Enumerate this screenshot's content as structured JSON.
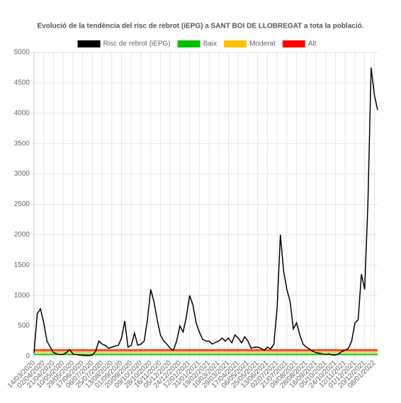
{
  "chart_data": {
    "type": "line",
    "title": "Evolució de la tendència del risc de rebrot (iEPG) a SANT BOI DE LLOBREGAT a tota la població.",
    "categories": [
      "14/03/2020",
      null,
      null,
      "02/04/2020",
      null,
      null,
      "21/04/2020",
      null,
      null,
      "10/05/2020",
      null,
      null,
      "29/05/2020",
      null,
      null,
      "17/06/2020",
      null,
      null,
      "06/07/2020",
      null,
      null,
      "25/07/2020",
      null,
      null,
      "13/08/2020",
      null,
      null,
      "01/09/2020",
      null,
      null,
      "20/09/2020",
      null,
      null,
      "09/10/2020",
      null,
      null,
      "28/10/2020",
      null,
      null,
      "16/11/2020",
      null,
      null,
      "05/12/2020",
      null,
      null,
      "24/12/2020",
      null,
      null,
      "12/01/2021",
      null,
      null,
      "31/01/2021",
      null,
      null,
      "19/02/2021",
      null,
      null,
      "10/03/2021",
      null,
      null,
      "29/03/2021",
      null,
      null,
      "17/04/2021",
      null,
      null,
      "06/05/2021",
      null,
      null,
      "25/05/2021",
      null,
      null,
      "13/06/2021",
      null,
      null,
      "02/07/2021",
      null,
      null,
      "21/07/2021",
      null,
      null,
      "09/08/2021",
      null,
      null,
      "28/08/2021",
      null,
      null,
      "16/09/2021",
      null,
      null,
      "05/10/2021",
      null,
      null,
      "24/10/2021",
      null,
      null,
      "12/11/2021",
      null,
      null,
      "01/12/2021",
      null,
      null,
      "20/12/2021",
      null,
      null,
      "08/01/2022",
      null
    ],
    "series": [
      {
        "name": "Risc de rebrot (iEPG)",
        "color": "#000000",
        "values": [
          50,
          700,
          780,
          550,
          250,
          150,
          60,
          40,
          30,
          30,
          60,
          110,
          40,
          30,
          20,
          15,
          10,
          10,
          20,
          80,
          250,
          200,
          180,
          130,
          150,
          170,
          180,
          300,
          580,
          150,
          180,
          380,
          180,
          200,
          250,
          600,
          1100,
          900,
          600,
          350,
          250,
          200,
          130,
          100,
          250,
          500,
          400,
          650,
          1000,
          850,
          550,
          400,
          280,
          250,
          250,
          200,
          230,
          250,
          300,
          250,
          300,
          220,
          350,
          300,
          220,
          320,
          250,
          130,
          150,
          150,
          130,
          100,
          150,
          120,
          200,
          800,
          2000,
          1400,
          1100,
          900,
          450,
          550,
          350,
          200,
          150,
          120,
          80,
          60,
          50,
          40,
          30,
          40,
          20,
          20,
          40,
          80,
          100,
          130,
          250,
          550,
          600,
          1350,
          1100,
          2500,
          4750,
          4300,
          4050
        ]
      },
      {
        "name": "Baix",
        "color": "#00c000",
        "values": [
          30,
          30,
          30,
          30,
          30,
          30,
          30,
          30,
          30,
          30,
          30,
          30,
          30,
          30,
          30,
          30,
          30,
          30,
          30,
          30,
          30,
          30,
          30,
          30,
          30,
          30,
          30,
          30,
          30,
          30,
          30,
          30,
          30,
          30,
          30,
          30,
          30,
          30,
          30,
          30,
          30,
          30,
          30,
          30,
          30,
          30,
          30,
          30,
          30,
          30,
          30,
          30,
          30,
          30,
          30,
          30,
          30,
          30,
          30,
          30,
          30,
          30,
          30,
          30,
          30,
          30,
          30,
          30,
          30,
          30,
          30,
          30,
          30,
          30,
          30,
          30,
          30,
          30,
          30,
          30,
          30,
          30,
          30,
          30,
          30,
          30,
          30,
          30,
          30,
          30,
          30,
          30,
          30,
          30,
          30,
          30,
          30,
          30,
          30,
          30,
          30,
          30,
          30,
          30,
          30,
          30,
          30
        ]
      },
      {
        "name": "Moderat",
        "color": "#ffc000",
        "values": [
          70,
          70,
          70,
          70,
          70,
          70,
          70,
          70,
          70,
          70,
          70,
          70,
          70,
          70,
          70,
          70,
          70,
          70,
          70,
          70,
          70,
          70,
          70,
          70,
          70,
          70,
          70,
          70,
          70,
          70,
          70,
          70,
          70,
          70,
          70,
          70,
          70,
          70,
          70,
          70,
          70,
          70,
          70,
          70,
          70,
          70,
          70,
          70,
          70,
          70,
          70,
          70,
          70,
          70,
          70,
          70,
          70,
          70,
          70,
          70,
          70,
          70,
          70,
          70,
          70,
          70,
          70,
          70,
          70,
          70,
          70,
          70,
          70,
          70,
          70,
          70,
          70,
          70,
          70,
          70,
          70,
          70,
          70,
          70,
          70,
          70,
          70,
          70,
          70,
          70,
          70,
          70,
          70,
          70,
          70,
          70,
          70,
          70,
          70,
          70,
          70,
          70,
          70,
          70,
          70,
          70,
          70
        ]
      },
      {
        "name": "Alt",
        "color": "#ff0000",
        "values": [
          100,
          100,
          100,
          100,
          100,
          100,
          100,
          100,
          100,
          100,
          100,
          100,
          100,
          100,
          100,
          100,
          100,
          100,
          100,
          100,
          100,
          100,
          100,
          100,
          100,
          100,
          100,
          100,
          100,
          100,
          100,
          100,
          100,
          100,
          100,
          100,
          100,
          100,
          100,
          100,
          100,
          100,
          100,
          100,
          100,
          100,
          100,
          100,
          100,
          100,
          100,
          100,
          100,
          100,
          100,
          100,
          100,
          100,
          100,
          100,
          100,
          100,
          100,
          100,
          100,
          100,
          100,
          100,
          100,
          100,
          100,
          100,
          100,
          100,
          100,
          100,
          100,
          100,
          100,
          100,
          100,
          100,
          100,
          100,
          100,
          100,
          100,
          100,
          100,
          100,
          100,
          100,
          100,
          100,
          100,
          100,
          100,
          100,
          100,
          100,
          100,
          100,
          100,
          100,
          100,
          100,
          100
        ]
      }
    ],
    "ylim": [
      0,
      5000
    ],
    "yticks": [
      0,
      500,
      1000,
      1500,
      2000,
      2500,
      3000,
      3500,
      4000,
      4500,
      5000
    ],
    "grid": true,
    "legend": "top"
  }
}
